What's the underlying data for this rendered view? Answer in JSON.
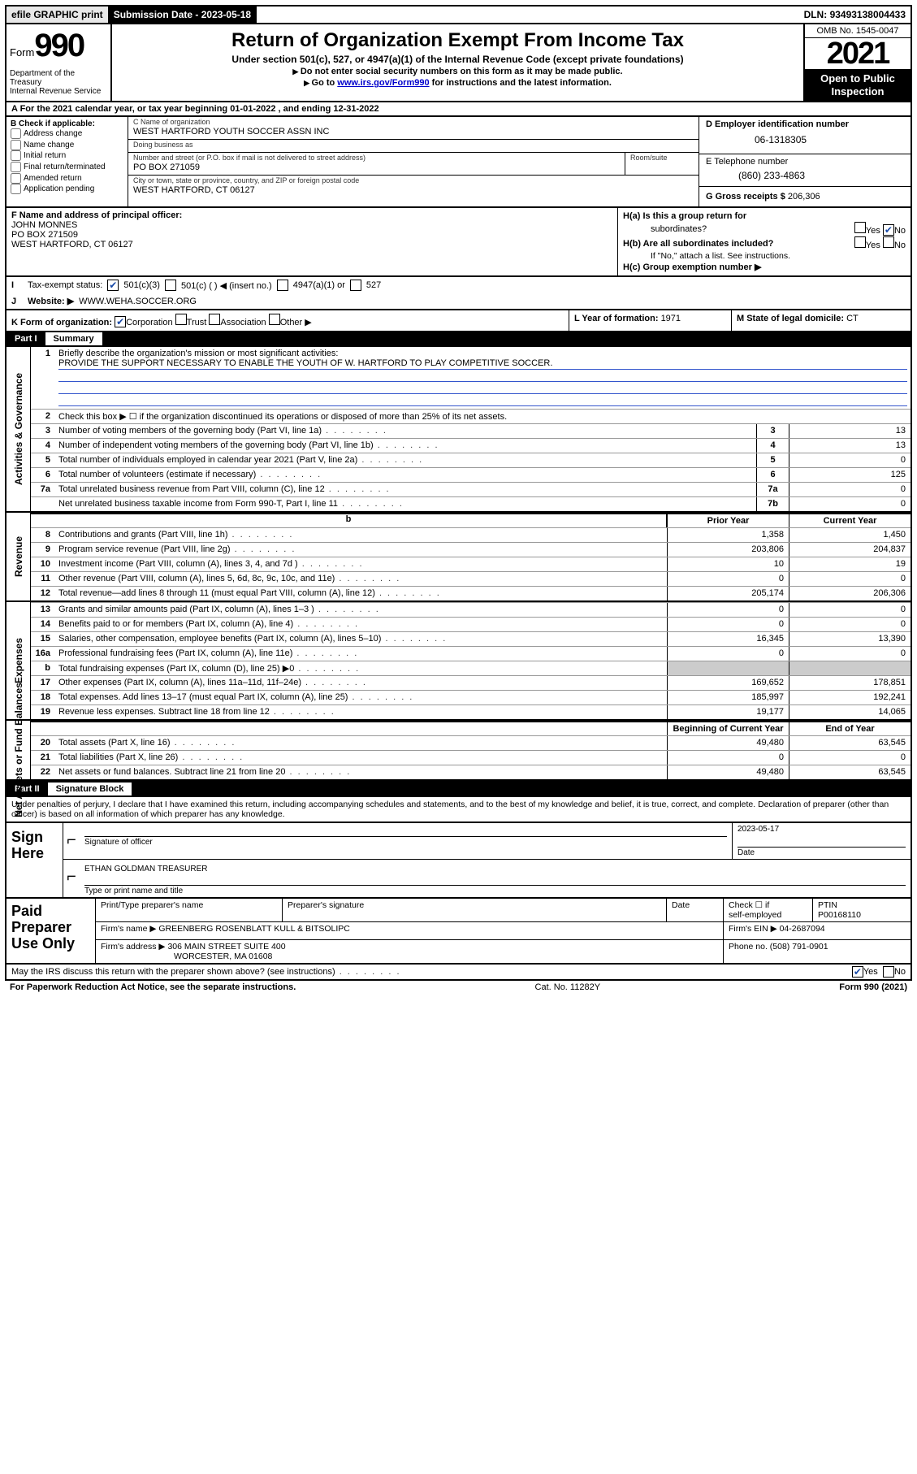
{
  "topbar": {
    "efile": "efile GRAPHIC print",
    "submission_label": "Submission Date - ",
    "submission_date": "2023-05-18",
    "dln_label": "DLN: ",
    "dln": "93493138004433"
  },
  "header": {
    "form_word": "Form",
    "form_no": "990",
    "dept": "Department of the Treasury\nInternal Revenue Service",
    "title": "Return of Organization Exempt From Income Tax",
    "sub1": "Under section 501(c), 527, or 4947(a)(1) of the Internal Revenue Code (except private foundations)",
    "sub2a": "Do not enter social security numbers on this form as it may be made public.",
    "sub2b_pre": "Go to ",
    "sub2b_link": "www.irs.gov/Form990",
    "sub2b_post": " for instructions and the latest information.",
    "omb": "OMB No. 1545-0047",
    "year": "2021",
    "otp1": "Open to Public",
    "otp2": "Inspection"
  },
  "rowA": "A For the 2021 calendar year, or tax year beginning 01-01-2022  , and ending 12-31-2022",
  "boxB": {
    "label": "B Check if applicable:",
    "opts": [
      "Address change",
      "Name change",
      "Initial return",
      "Final return/terminated",
      "Amended return",
      "Application pending"
    ]
  },
  "boxC": {
    "name_lbl": "C Name of organization",
    "name": "WEST HARTFORD YOUTH SOCCER ASSN INC",
    "dba_lbl": "Doing business as",
    "dba": "",
    "street_lbl": "Number and street (or P.O. box if mail is not delivered to street address)",
    "room_lbl": "Room/suite",
    "street": "PO BOX 271059",
    "city_lbl": "City or town, state or province, country, and ZIP or foreign postal code",
    "city": "WEST HARTFORD, CT  06127"
  },
  "boxD": {
    "lbl": "D Employer identification number",
    "val": "06-1318305"
  },
  "boxE": {
    "lbl": "E Telephone number",
    "val": "(860) 233-4863"
  },
  "boxG": {
    "lbl": "G Gross receipts $ ",
    "val": "206,306"
  },
  "boxF": {
    "lbl": "F Name and address of principal officer:",
    "l1": "JOHN MONNES",
    "l2": "PO BOX 271509",
    "l3": "WEST HARTFORD, CT  06127"
  },
  "boxH": {
    "a_lbl": "H(a)  Is this a group return for",
    "a_lbl2": "subordinates?",
    "b_lbl": "H(b)  Are all subordinates included?",
    "note": "If \"No,\" attach a list. See instructions.",
    "c_lbl": "H(c)  Group exemption number ▶",
    "yes": "Yes",
    "no": "No"
  },
  "rowI": {
    "lbl": "Tax-exempt status:",
    "o1": "501(c)(3)",
    "o2": "501(c) (   ) ◀ (insert no.)",
    "o3": "4947(a)(1) or",
    "o4": "527"
  },
  "rowJ": {
    "lbl": "J",
    "txt": "Website: ▶",
    "val": "WWW.WEHA.SOCCER.ORG"
  },
  "rowK": {
    "lbl": "K Form of organization:",
    "o1": "Corporation",
    "o2": "Trust",
    "o3": "Association",
    "o4": "Other ▶",
    "L": "L Year of formation: ",
    "Lval": "1971",
    "M": "M State of legal domicile: ",
    "Mval": "CT"
  },
  "parts": {
    "p1_num": "Part I",
    "p1_title": "Summary",
    "p2_num": "Part II",
    "p2_title": "Signature Block"
  },
  "summary": {
    "tabs": [
      "Activities & Governance",
      "Revenue",
      "Expenses",
      "Net Assets or Fund Balances"
    ],
    "l1_lbl": "Briefly describe the organization's mission or most significant activities:",
    "l1_val": "PROVIDE THE SUPPORT NECESSARY TO ENABLE THE YOUTH OF W. HARTFORD TO PLAY COMPETITIVE SOCCER.",
    "l2": "Check this box ▶ ☐  if the organization discontinued its operations or disposed of more than 25% of its net assets.",
    "hdr_prior": "Prior Year",
    "hdr_curr": "Current Year",
    "hdr_beg": "Beginning of Current Year",
    "hdr_end": "End of Year",
    "rows_ag": [
      {
        "n": "3",
        "t": "Number of voting members of the governing body (Part VI, line 1a)",
        "box": "3",
        "v": "13"
      },
      {
        "n": "4",
        "t": "Number of independent voting members of the governing body (Part VI, line 1b)",
        "box": "4",
        "v": "13"
      },
      {
        "n": "5",
        "t": "Total number of individuals employed in calendar year 2021 (Part V, line 2a)",
        "box": "5",
        "v": "0"
      },
      {
        "n": "6",
        "t": "Total number of volunteers (estimate if necessary)",
        "box": "6",
        "v": "125"
      },
      {
        "n": "7a",
        "t": "Total unrelated business revenue from Part VIII, column (C), line 12",
        "box": "7a",
        "v": "0"
      },
      {
        "n": "",
        "t": "Net unrelated business taxable income from Form 990-T, Part I, line 11",
        "box": "7b",
        "v": "0"
      }
    ],
    "rows_rev": [
      {
        "n": "8",
        "t": "Contributions and grants (Part VIII, line 1h)",
        "p": "1,358",
        "c": "1,450"
      },
      {
        "n": "9",
        "t": "Program service revenue (Part VIII, line 2g)",
        "p": "203,806",
        "c": "204,837"
      },
      {
        "n": "10",
        "t": "Investment income (Part VIII, column (A), lines 3, 4, and 7d )",
        "p": "10",
        "c": "19"
      },
      {
        "n": "11",
        "t": "Other revenue (Part VIII, column (A), lines 5, 6d, 8c, 9c, 10c, and 11e)",
        "p": "0",
        "c": "0"
      },
      {
        "n": "12",
        "t": "Total revenue—add lines 8 through 11 (must equal Part VIII, column (A), line 12)",
        "p": "205,174",
        "c": "206,306"
      }
    ],
    "rows_exp": [
      {
        "n": "13",
        "t": "Grants and similar amounts paid (Part IX, column (A), lines 1–3 )",
        "p": "0",
        "c": "0"
      },
      {
        "n": "14",
        "t": "Benefits paid to or for members (Part IX, column (A), line 4)",
        "p": "0",
        "c": "0"
      },
      {
        "n": "15",
        "t": "Salaries, other compensation, employee benefits (Part IX, column (A), lines 5–10)",
        "p": "16,345",
        "c": "13,390"
      },
      {
        "n": "16a",
        "t": "Professional fundraising fees (Part IX, column (A), line 11e)",
        "p": "0",
        "c": "0"
      },
      {
        "n": "b",
        "t": "Total fundraising expenses (Part IX, column (D), line 25) ▶0",
        "p": "__shade__",
        "c": "__shade__"
      },
      {
        "n": "17",
        "t": "Other expenses (Part IX, column (A), lines 11a–11d, 11f–24e)",
        "p": "169,652",
        "c": "178,851"
      },
      {
        "n": "18",
        "t": "Total expenses. Add lines 13–17 (must equal Part IX, column (A), line 25)",
        "p": "185,997",
        "c": "192,241"
      },
      {
        "n": "19",
        "t": "Revenue less expenses. Subtract line 18 from line 12",
        "p": "19,177",
        "c": "14,065"
      }
    ],
    "rows_net": [
      {
        "n": "20",
        "t": "Total assets (Part X, line 16)",
        "p": "49,480",
        "c": "63,545"
      },
      {
        "n": "21",
        "t": "Total liabilities (Part X, line 26)",
        "p": "0",
        "c": "0"
      },
      {
        "n": "22",
        "t": "Net assets or fund balances. Subtract line 21 from line 20",
        "p": "49,480",
        "c": "63,545"
      }
    ]
  },
  "sig_intro": "Under penalties of perjury, I declare that I have examined this return, including accompanying schedules and statements, and to the best of my knowledge and belief, it is true, correct, and complete. Declaration of preparer (other than officer) is based on all information of which preparer has any knowledge.",
  "sign": {
    "here": "Sign Here",
    "sig_lbl": "Signature of officer",
    "date_lbl": "Date",
    "date_val": "2023-05-17",
    "name": "ETHAN GOLDMAN  TREASURER",
    "name_lbl": "Type or print name and title"
  },
  "prep": {
    "title": "Paid Preparer Use Only",
    "h1": "Print/Type preparer's name",
    "h2": "Preparer's signature",
    "h3": "Date",
    "h4a": "Check ☐ if",
    "h4b": "self-employed",
    "h5": "PTIN",
    "ptin": "P00168110",
    "firm_name_lbl": "Firm's name   ▶",
    "firm_name": "GREENBERG ROSENBLATT KULL & BITSOLIPC",
    "firm_ein_lbl": "Firm's EIN ▶",
    "firm_ein": "04-2687094",
    "firm_addr_lbl": "Firm's address ▶",
    "firm_addr1": "306 MAIN STREET SUITE 400",
    "firm_addr2": "WORCESTER, MA  01608",
    "phone_lbl": "Phone no. ",
    "phone": "(508) 791-0901"
  },
  "discuss": {
    "txt": "May the IRS discuss this return with the preparer shown above? (see instructions)",
    "yes": "Yes",
    "no": "No"
  },
  "footer": {
    "l": "For Paperwork Reduction Act Notice, see the separate instructions.",
    "m": "Cat. No. 11282Y",
    "r": "Form 990 (2021)"
  },
  "colors": {
    "link": "#0000cc",
    "checked": "#1a4ba8",
    "shade": "#cccccc",
    "rule_blue": "#3355cc"
  }
}
